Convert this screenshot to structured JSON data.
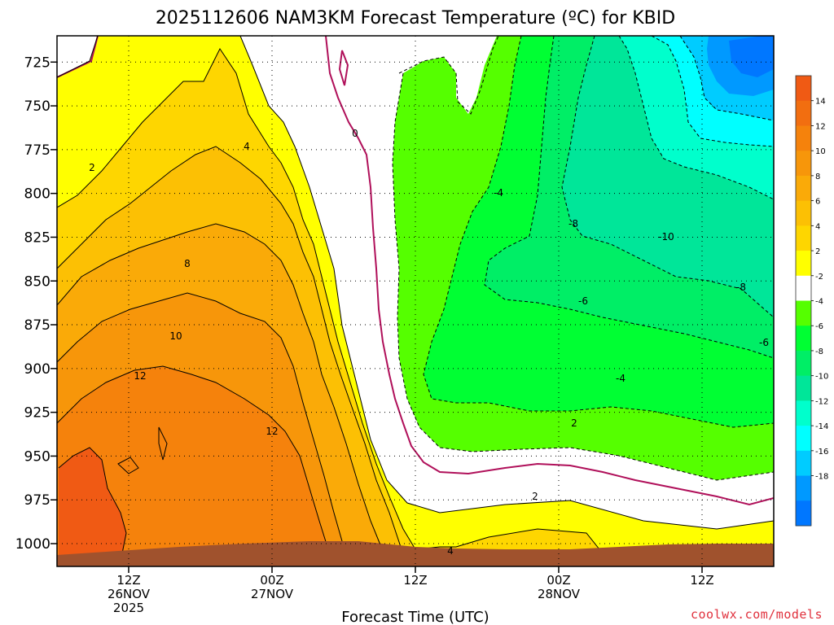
{
  "chart_data": {
    "type": "heatmap",
    "title": "2025112606 NAM3KM Forecast Temperature (ºC) for KBID",
    "xlabel": "Forecast Time (UTC)",
    "ylabel": "",
    "y_axis": {
      "quantity": "pressure (hPa)",
      "reversed": true,
      "range": [
        1013,
        710
      ],
      "ticks": [
        725,
        750,
        775,
        800,
        825,
        850,
        875,
        900,
        925,
        950,
        975,
        1000
      ]
    },
    "x_axis": {
      "range": [
        "2025-11-26 06Z",
        "2025-11-28 18Z"
      ],
      "ticks": [
        {
          "time": "2025-11-26 12Z",
          "lines": [
            "12Z",
            "26NOV",
            "2025"
          ]
        },
        {
          "time": "2025-11-27 00Z",
          "lines": [
            "00Z",
            "27NOV"
          ]
        },
        {
          "time": "2025-11-27 12Z",
          "lines": [
            "12Z"
          ]
        },
        {
          "time": "2025-11-28 00Z",
          "lines": [
            "00Z",
            "28NOV"
          ]
        },
        {
          "time": "2025-11-28 12Z",
          "lines": [
            "12Z"
          ]
        }
      ]
    },
    "grid": true,
    "colorbar": {
      "labels": [
        "14",
        "12",
        "10",
        "8",
        "6",
        "4",
        "2",
        "-2",
        "-4",
        "-6",
        "-8",
        "-10",
        "-12",
        "-14",
        "-16",
        "-18"
      ],
      "bins": [
        {
          "color": "#f05a14"
        },
        {
          "color": "#f26e10"
        },
        {
          "color": "#f5820c"
        },
        {
          "color": "#f7960a"
        },
        {
          "color": "#faaa08"
        },
        {
          "color": "#fcc004"
        },
        {
          "color": "#fed600"
        },
        {
          "color": "#ffff00"
        },
        {
          "color": "#ffffff"
        },
        {
          "color": "#55ff00"
        },
        {
          "color": "#00ff33"
        },
        {
          "color": "#00ee66"
        },
        {
          "color": "#00e699"
        },
        {
          "color": "#00ffcc"
        },
        {
          "color": "#00ffff"
        },
        {
          "color": "#00ccff"
        },
        {
          "color": "#0099ff"
        },
        {
          "color": "#0077ff"
        }
      ]
    },
    "contour_labels": [
      "2",
      "4",
      "8",
      "10",
      "12",
      "12",
      "0",
      "-4",
      "-8",
      "-10",
      "-8",
      "-6",
      "-6",
      "-4",
      "2",
      "2",
      "4"
    ],
    "terrain_color": "#a0522d",
    "colors": {
      "warm_max": "#f05a14",
      "freezing_line": "#b0105a",
      "terrain": "#a0522d"
    }
  },
  "credit": "coolwx.com/models"
}
